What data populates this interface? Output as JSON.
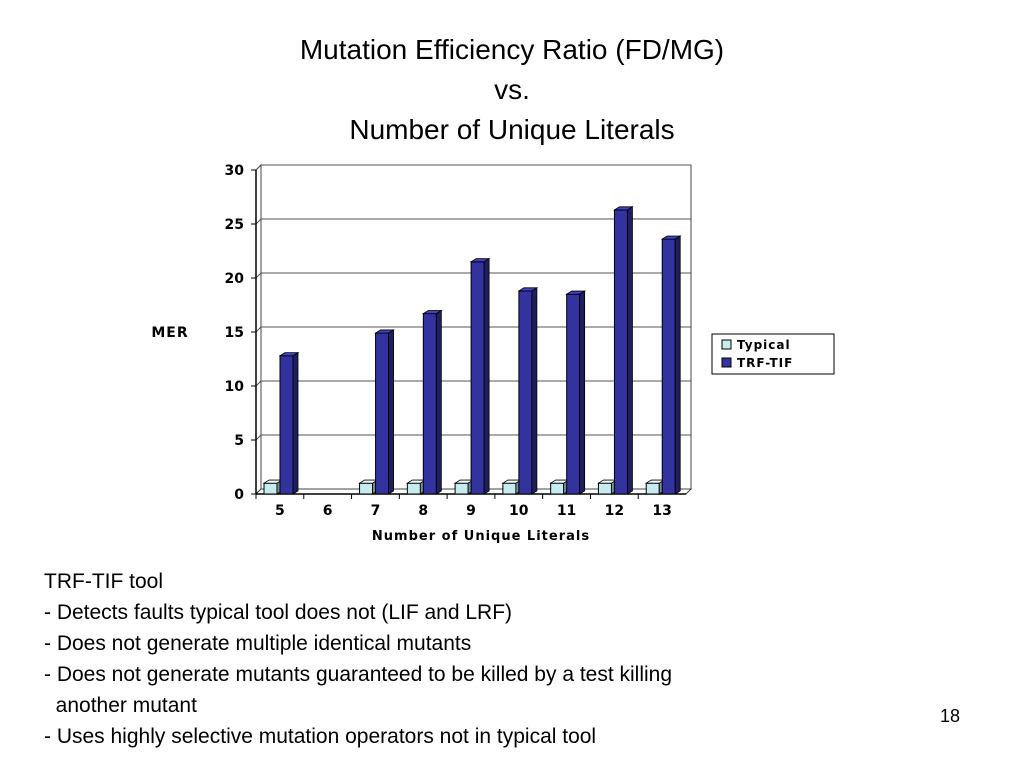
{
  "slide": {
    "title_lines": [
      "Mutation Efficiency Ratio (FD/MG)",
      "vs.",
      "Number of Unique Literals"
    ],
    "body_lines": [
      "TRF-TIF tool",
      "- Detects faults typical tool does not (LIF and LRF)",
      "- Does not generate multiple identical mutants",
      "- Does not generate mutants guaranteed to be killed by a test killing",
      "  another mutant",
      "- Uses highly selective mutation operators not in typical tool"
    ],
    "slide_number": "18"
  },
  "chart_data": {
    "type": "bar",
    "title": "",
    "xlabel": "Number of Unique Literals",
    "ylabel": "MER",
    "categories": [
      "5",
      "6",
      "7",
      "8",
      "9",
      "10",
      "11",
      "12",
      "13"
    ],
    "series": [
      {
        "name": "Typical",
        "values": [
          1,
          0,
          1,
          1,
          1,
          1,
          1,
          1,
          1
        ],
        "color": "#c6ecf2"
      },
      {
        "name": "TRF-TIF",
        "values": [
          12.8,
          0,
          14.9,
          16.7,
          21.5,
          18.8,
          18.5,
          26.3,
          23.6
        ],
        "color": "#3333a0"
      }
    ],
    "ylim": [
      0,
      30
    ],
    "yticks": [
      0,
      5,
      10,
      15,
      20,
      25,
      30
    ],
    "grid": true,
    "legend_position": "right",
    "style": "3d-bar"
  }
}
